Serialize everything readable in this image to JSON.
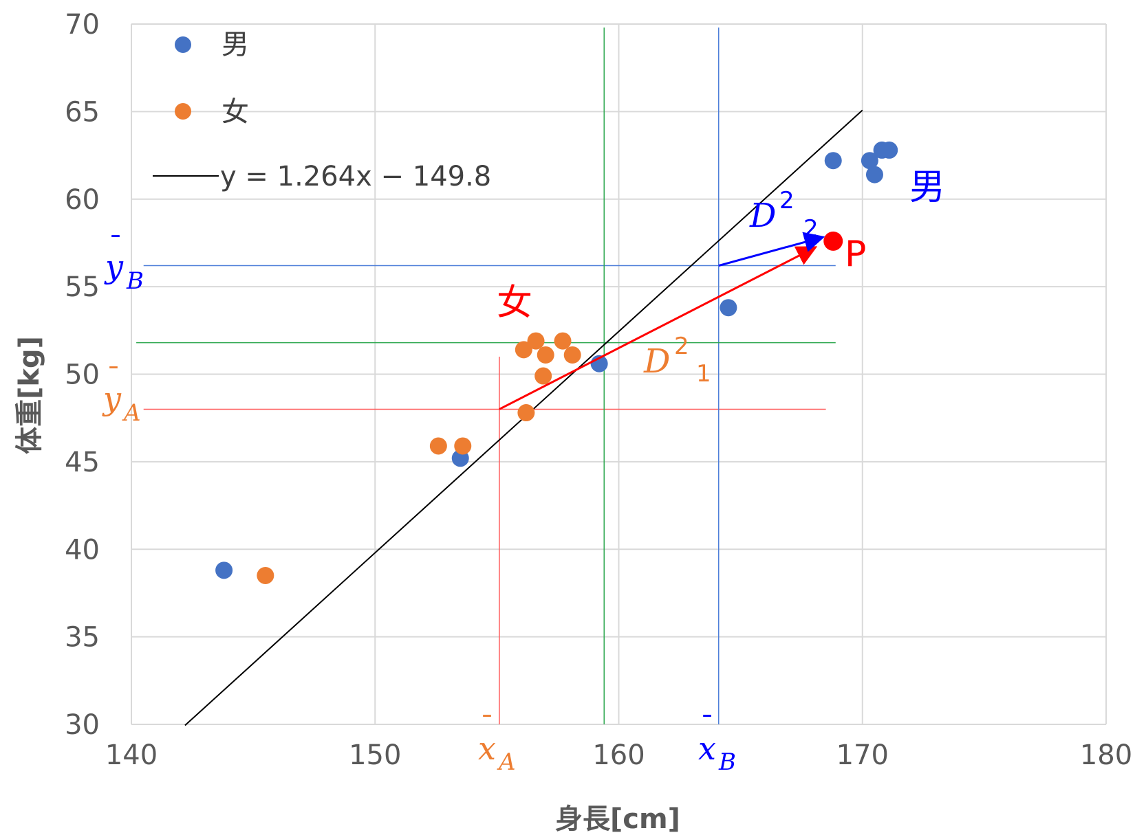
{
  "chart_data": {
    "type": "scatter",
    "xlabel": "身長[cm]",
    "ylabel": "体重[kg]",
    "xlim": [
      140,
      180
    ],
    "ylim": [
      30,
      70
    ],
    "x_ticks": [
      "140",
      "150",
      "160",
      "170",
      "180"
    ],
    "y_ticks": [
      "30",
      "35",
      "40",
      "45",
      "50",
      "55",
      "60",
      "65",
      "70"
    ],
    "grid": true,
    "legend_position": "top-left",
    "series": [
      {
        "name": "男",
        "color": "#4472c4",
        "points": [
          {
            "x": 143.8,
            "y": 38.8
          },
          {
            "x": 153.5,
            "y": 45.2
          },
          {
            "x": 159.2,
            "y": 50.6
          },
          {
            "x": 164.5,
            "y": 53.8
          },
          {
            "x": 168.8,
            "y": 62.2
          },
          {
            "x": 170.3,
            "y": 62.2
          },
          {
            "x": 170.5,
            "y": 61.4
          },
          {
            "x": 170.8,
            "y": 62.8
          },
          {
            "x": 171.1,
            "y": 62.8
          }
        ]
      },
      {
        "name": "女",
        "color": "#ed7d31",
        "points": [
          {
            "x": 145.5,
            "y": 38.5
          },
          {
            "x": 152.6,
            "y": 45.9
          },
          {
            "x": 153.6,
            "y": 45.9
          },
          {
            "x": 156.2,
            "y": 47.8
          },
          {
            "x": 156.1,
            "y": 51.4
          },
          {
            "x": 156.6,
            "y": 51.9
          },
          {
            "x": 157.0,
            "y": 51.1
          },
          {
            "x": 156.9,
            "y": 49.9
          },
          {
            "x": 157.7,
            "y": 51.9
          },
          {
            "x": 158.1,
            "y": 51.1
          }
        ]
      }
    ],
    "trendline": {
      "label": "y = 1.264x − 149.8",
      "slope": 1.264,
      "intercept": -149.8,
      "x_range": [
        142.2,
        170.0
      ],
      "color": "#000000"
    },
    "reference_lines": [
      {
        "axis": "x",
        "value": 155.1,
        "y_range": [
          30,
          51
        ],
        "color": "#ff5b5b"
      },
      {
        "axis": "y",
        "value": 48.0,
        "x_range": [
          140.5,
          168.5
        ],
        "color": "#ff5b5b"
      },
      {
        "axis": "x",
        "value": 164.1,
        "y_range": [
          30,
          69.8
        ],
        "color": "#4f7fd9"
      },
      {
        "axis": "y",
        "value": 56.2,
        "x_range": [
          140.5,
          168.9
        ],
        "color": "#4f7fd9"
      },
      {
        "axis": "x",
        "value": 159.4,
        "y_range": [
          30,
          69.8
        ],
        "color": "#2ea84f"
      },
      {
        "axis": "y",
        "value": 51.8,
        "x_range": [
          140.2,
          168.9
        ],
        "color": "#2ea84f"
      }
    ],
    "point_P": {
      "label": "P",
      "x": 168.8,
      "y": 57.6,
      "color": "#ff0000"
    },
    "arrows": [
      {
        "from": {
          "x": 155.1,
          "y": 48.0
        },
        "to": {
          "x": 168.0,
          "y": 57.2
        },
        "color": "#ff0000",
        "label": "D²₁",
        "label_color": "#ed7d31"
      },
      {
        "from": {
          "x": 164.1,
          "y": 56.2
        },
        "to": {
          "x": 168.3,
          "y": 57.8
        },
        "color": "#0000ff",
        "label": "D²₂",
        "label_color": "#0000ff"
      }
    ],
    "annotations": [
      {
        "text": "男",
        "color": "#0000ff"
      },
      {
        "text": "女",
        "color": "#ff0000"
      }
    ],
    "mean_labels": [
      {
        "text": "x̄A",
        "color": "#ed7d31"
      },
      {
        "text": "x̄B",
        "color": "#0000ff"
      },
      {
        "text": "ȳA",
        "color": "#ed7d31"
      },
      {
        "text": "ȳB",
        "color": "#0000ff"
      }
    ]
  }
}
